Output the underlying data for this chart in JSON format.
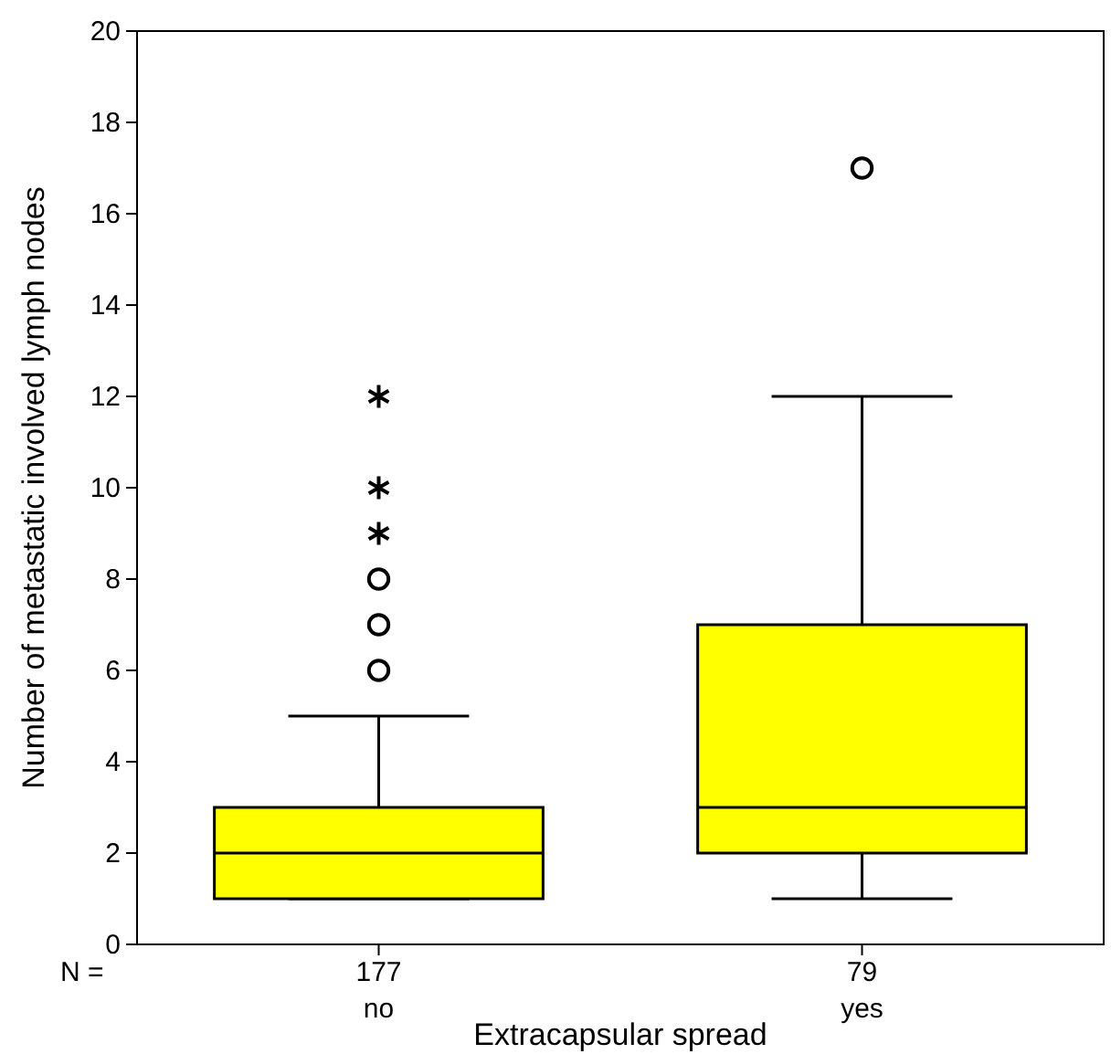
{
  "chart_data": {
    "type": "box",
    "xlabel": "Extracapsular spread",
    "ylabel": "Number of metastatic involved lymph nodes",
    "categories": [
      "no",
      "yes"
    ],
    "boxes": [
      {
        "low": 1,
        "q1": 1,
        "median": 2,
        "q3": 3,
        "high": 5,
        "outliers": [
          6,
          7,
          8,
          9,
          10,
          12
        ]
      },
      {
        "low": 1,
        "q1": 2,
        "median": 3,
        "q3": 7,
        "high": 12,
        "outliers": [
          17
        ]
      }
    ],
    "color": "#ffff00",
    "ylim": [
      0,
      20
    ],
    "yticks": [
      0,
      2,
      4,
      6,
      8,
      10,
      12,
      14,
      16,
      18,
      20
    ],
    "annotations": [
      "N =",
      "177",
      "79"
    ],
    "grid": false
  }
}
